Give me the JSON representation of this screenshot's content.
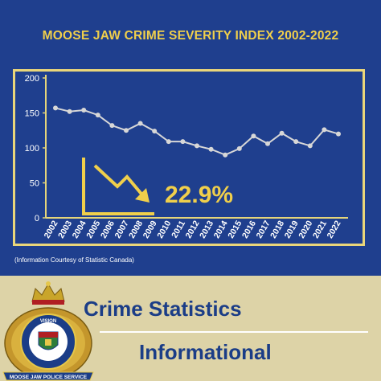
{
  "chart_data": {
    "type": "line",
    "title": "MOOSE JAW CRIME SEVERITY INDEX 2002-2022",
    "x": [
      "2002",
      "2003",
      "2004",
      "2005",
      "2006",
      "2007",
      "2008",
      "2009",
      "2010",
      "2011",
      "2012",
      "2013",
      "2014",
      "2015",
      "2016",
      "2017",
      "2018",
      "2019",
      "2020",
      "2021",
      "2022"
    ],
    "values": [
      157,
      152,
      154,
      147,
      132,
      125,
      135,
      124,
      109,
      109,
      103,
      98,
      90,
      99,
      117,
      106,
      121,
      109,
      103,
      126,
      120
    ],
    "ylim": [
      0,
      200
    ],
    "yticks": [
      0,
      50,
      100,
      150,
      200
    ],
    "xlabel": "",
    "ylabel": "",
    "grid": false,
    "line_color": "#d7d7d7",
    "axis_color": "#e5d57a",
    "annotation": "22.9%",
    "annotation_icon": "trend-down-arrow-icon"
  },
  "credit": "(Information Courtesy of Statistic Canada)",
  "banner": {
    "line1": "Crime Statistics",
    "line2": "Informational"
  },
  "badge": {
    "text": "MOOSE JAW POLICE SERVICE",
    "motto": "VISION"
  },
  "colors": {
    "background_blue": "#1f3f8e",
    "title_gold": "#f0cf4b",
    "frame_gold": "#ead67a",
    "banner_tan": "#ddd3a7",
    "banner_text": "#1b3d87"
  }
}
